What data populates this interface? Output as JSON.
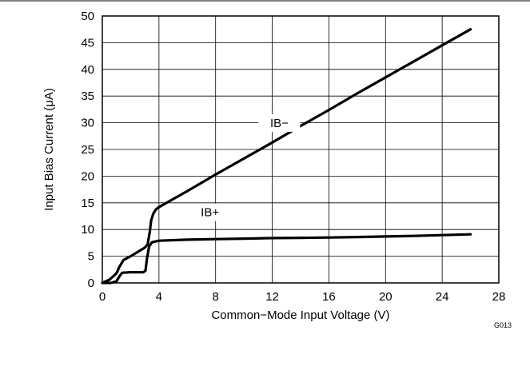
{
  "chart_data": {
    "type": "line",
    "xlabel": "Common−Mode Input Voltage (V)",
    "ylabel": "Input Bias Current (μA)",
    "xlim": [
      0,
      28
    ],
    "ylim": [
      0,
      50
    ],
    "xticks": [
      "0",
      "4",
      "8",
      "12",
      "16",
      "20",
      "24",
      "28"
    ],
    "yticks": [
      "0",
      "5",
      "10",
      "15",
      "20",
      "25",
      "30",
      "35",
      "40",
      "45",
      "50"
    ],
    "grid": true,
    "series": [
      {
        "name": "IB−",
        "x": [
          0,
          0.5,
          1.0,
          1.2,
          1.5,
          2.0,
          2.5,
          3.0,
          3.2,
          3.35,
          3.45,
          3.6,
          3.8,
          4.0,
          6,
          8,
          10,
          12,
          14,
          16,
          18,
          20,
          22,
          24,
          26
        ],
        "y": [
          0,
          0.6,
          1.8,
          3.0,
          4.3,
          5.0,
          5.8,
          6.6,
          7.2,
          9.5,
          11.7,
          13.0,
          13.8,
          14.2,
          17.2,
          20.3,
          23.3,
          26.3,
          29.4,
          32.4,
          35.5,
          38.5,
          41.5,
          44.5,
          47.5
        ]
      },
      {
        "name": "IB+",
        "x": [
          0,
          0.6,
          1.0,
          1.2,
          1.4,
          2.0,
          2.6,
          2.9,
          3.05,
          3.15,
          3.3,
          3.5,
          3.8,
          4.0,
          6,
          8,
          10,
          12,
          14,
          16,
          18,
          20,
          22,
          24,
          26
        ],
        "y": [
          0,
          0,
          0.3,
          1.2,
          1.9,
          2.0,
          2.0,
          2.0,
          2.3,
          4.5,
          6.8,
          7.6,
          7.8,
          7.9,
          8.1,
          8.2,
          8.3,
          8.4,
          8.45,
          8.5,
          8.6,
          8.7,
          8.8,
          8.95,
          9.1
        ]
      }
    ],
    "annotations": [
      "IB−",
      "IB+"
    ],
    "figure_code": "G013"
  }
}
